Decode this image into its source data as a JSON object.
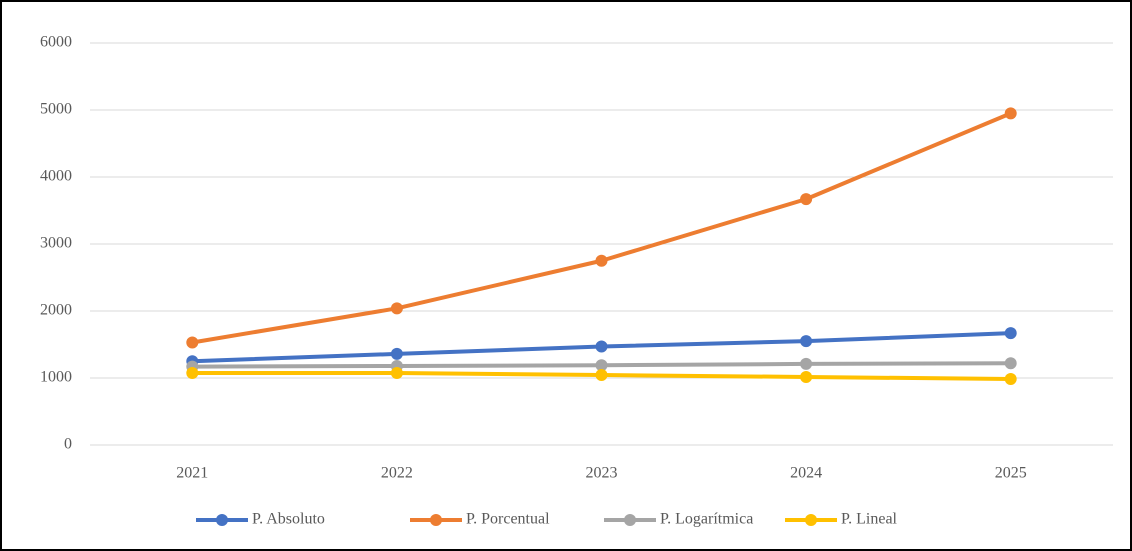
{
  "chart_data": {
    "type": "line",
    "categories": [
      "2021",
      "2022",
      "2023",
      "2024",
      "2025"
    ],
    "series": [
      {
        "name": "P. Absoluto",
        "color": "#4472c4",
        "values": [
          1250,
          1360,
          1470,
          1550,
          1670
        ]
      },
      {
        "name": "P. Porcentual",
        "color": "#ed7d31",
        "values": [
          1530,
          2040,
          2750,
          3670,
          4950
        ]
      },
      {
        "name": "P. Logarítmica",
        "color": "#a5a5a5",
        "values": [
          1170,
          1180,
          1190,
          1210,
          1220
        ]
      },
      {
        "name": "P. Lineal",
        "color": "#ffc000",
        "values": [
          1075,
          1075,
          1045,
          1015,
          985
        ]
      }
    ],
    "ylim": [
      0,
      6000
    ],
    "yticks": [
      0,
      1000,
      2000,
      3000,
      4000,
      5000,
      6000
    ],
    "grid": true,
    "legend": "bottom"
  }
}
